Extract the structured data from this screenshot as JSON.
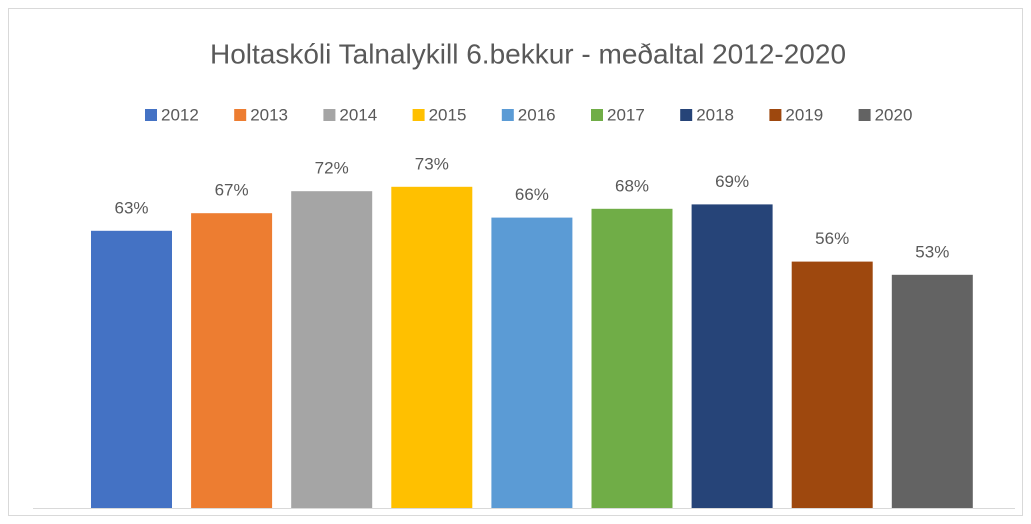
{
  "chart_data": {
    "type": "bar",
    "title": "Holtaskóli Talnalykill 6.bekkur - meðaltal 2012-2020",
    "ylim": [
      0,
      80
    ],
    "series": [
      {
        "name": "2012",
        "color": "#4472c4",
        "values": [
          63
        ],
        "value_labels": [
          "63%"
        ]
      },
      {
        "name": "2013",
        "color": "#ed7d31",
        "values": [
          67
        ],
        "value_labels": [
          "67%"
        ]
      },
      {
        "name": "2014",
        "color": "#a5a5a5",
        "values": [
          72
        ],
        "value_labels": [
          "72%"
        ]
      },
      {
        "name": "2015",
        "color": "#ffc000",
        "values": [
          73
        ],
        "value_labels": [
          "73%"
        ]
      },
      {
        "name": "2016",
        "color": "#5b9bd5",
        "values": [
          66
        ],
        "value_labels": [
          "66%"
        ]
      },
      {
        "name": "2017",
        "color": "#70ad47",
        "values": [
          68
        ],
        "value_labels": [
          "68%"
        ]
      },
      {
        "name": "2018",
        "color": "#264478",
        "values": [
          69
        ],
        "value_labels": [
          "69%"
        ]
      },
      {
        "name": "2019",
        "color": "#9e480e",
        "values": [
          56
        ],
        "value_labels": [
          "56%"
        ]
      },
      {
        "name": "2020",
        "color": "#636363",
        "values": [
          53
        ],
        "value_labels": [
          "53%"
        ]
      }
    ]
  }
}
